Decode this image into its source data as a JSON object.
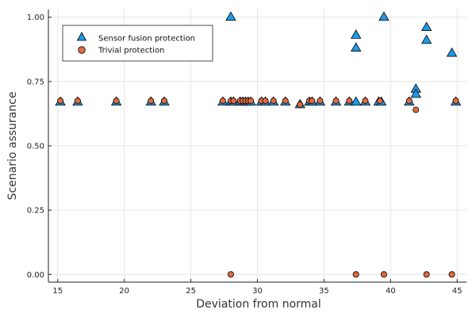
{
  "chart_data": {
    "type": "scatter",
    "title": "",
    "xlabel": "Deviation from normal",
    "ylabel": "Scenario assurance",
    "xlim": [
      14.3,
      45.7
    ],
    "ylim": [
      -0.03,
      1.03
    ],
    "xticks": [
      15,
      20,
      25,
      30,
      35,
      40,
      45
    ],
    "xtick_labels": [
      "15",
      "20",
      "25",
      "30",
      "35",
      "40",
      "45"
    ],
    "yticks": [
      0,
      0.25,
      0.5,
      0.75,
      1.0
    ],
    "ytick_labels": [
      "0.00",
      "0.25",
      "0.50",
      "0.75",
      "1.00"
    ],
    "grid": true,
    "legend_position": "top-left",
    "series": [
      {
        "name": "Sensor fusion protection",
        "marker": "triangle",
        "color": "#1f9ae6",
        "points": [
          [
            15.2,
            0.67
          ],
          [
            16.5,
            0.67
          ],
          [
            19.4,
            0.67
          ],
          [
            22.0,
            0.67
          ],
          [
            23.0,
            0.67
          ],
          [
            27.4,
            0.67
          ],
          [
            28.0,
            0.67
          ],
          [
            28.2,
            0.67
          ],
          [
            28.7,
            0.67
          ],
          [
            28.9,
            0.67
          ],
          [
            29.1,
            0.67
          ],
          [
            29.3,
            0.67
          ],
          [
            29.5,
            0.67
          ],
          [
            30.3,
            0.67
          ],
          [
            30.6,
            0.67
          ],
          [
            31.2,
            0.67
          ],
          [
            32.1,
            0.67
          ],
          [
            33.2,
            0.66
          ],
          [
            33.9,
            0.67
          ],
          [
            34.1,
            0.67
          ],
          [
            34.7,
            0.67
          ],
          [
            35.9,
            0.67
          ],
          [
            36.9,
            0.67
          ],
          [
            37.4,
            0.67
          ],
          [
            38.1,
            0.67
          ],
          [
            39.1,
            0.67
          ],
          [
            39.3,
            0.67
          ],
          [
            41.4,
            0.67
          ],
          [
            44.9,
            0.67
          ],
          [
            28.0,
            1.0
          ],
          [
            39.5,
            1.0
          ],
          [
            37.4,
            0.93
          ],
          [
            37.4,
            0.88
          ],
          [
            42.7,
            0.96
          ],
          [
            42.7,
            0.91
          ],
          [
            44.6,
            0.86
          ],
          [
            41.9,
            0.72
          ],
          [
            41.9,
            0.7
          ]
        ]
      },
      {
        "name": "Trivial protection",
        "marker": "circle",
        "color": "#e26a3f",
        "points": [
          [
            15.2,
            0.675
          ],
          [
            16.5,
            0.675
          ],
          [
            19.4,
            0.675
          ],
          [
            22.0,
            0.675
          ],
          [
            23.0,
            0.675
          ],
          [
            27.4,
            0.675
          ],
          [
            28.0,
            0.675
          ],
          [
            28.2,
            0.675
          ],
          [
            28.7,
            0.675
          ],
          [
            28.9,
            0.675
          ],
          [
            29.1,
            0.675
          ],
          [
            29.3,
            0.675
          ],
          [
            29.5,
            0.675
          ],
          [
            30.3,
            0.675
          ],
          [
            30.6,
            0.675
          ],
          [
            31.2,
            0.675
          ],
          [
            32.1,
            0.675
          ],
          [
            33.2,
            0.66
          ],
          [
            33.9,
            0.675
          ],
          [
            34.1,
            0.675
          ],
          [
            34.7,
            0.675
          ],
          [
            35.9,
            0.675
          ],
          [
            36.9,
            0.675
          ],
          [
            38.1,
            0.675
          ],
          [
            39.2,
            0.675
          ],
          [
            41.4,
            0.675
          ],
          [
            44.9,
            0.675
          ],
          [
            41.9,
            0.64
          ],
          [
            28.0,
            0.0
          ],
          [
            37.4,
            0.0
          ],
          [
            39.5,
            0.0
          ],
          [
            42.7,
            0.0
          ],
          [
            44.6,
            0.0
          ]
        ]
      }
    ]
  }
}
